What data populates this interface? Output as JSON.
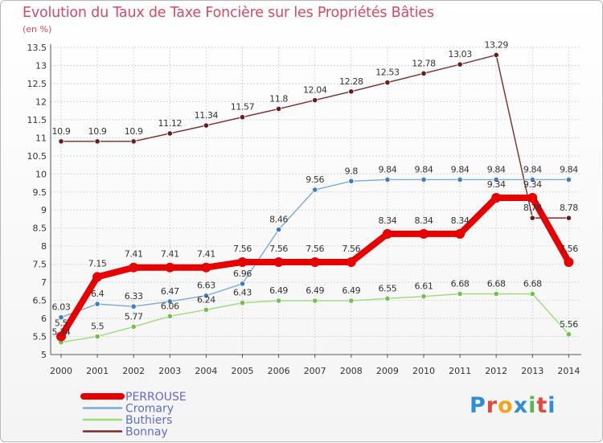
{
  "header": {
    "title": "Evolution du Taux de Taxe Foncière sur les Propriétés Bâties",
    "unit": "(en %)"
  },
  "logo": {
    "text": "Proxiti",
    "colors": [
      "#2e8fd6",
      "#e8453c",
      "#f2a51c",
      "#2e8fd6",
      "#5bb64d",
      "#e8453c",
      "#2e8fd6"
    ]
  },
  "chart_data": {
    "type": "line",
    "title": "Evolution du Taux de Taxe Foncière sur les Propriétés Bâties",
    "ylabel": "(en %)",
    "xlabel": "",
    "ylim": [
      5,
      13.5
    ],
    "yticks": [
      "5",
      "5.5",
      "6",
      "6.5",
      "7",
      "7.5",
      "8",
      "8.5",
      "9",
      "9.5",
      "10",
      "10.5",
      "11",
      "11.5",
      "12",
      "12.5",
      "13",
      "13.5"
    ],
    "categories": [
      "2000",
      "2001",
      "2002",
      "2003",
      "2004",
      "2005",
      "2006",
      "2007",
      "2008",
      "2009",
      "2010",
      "2011",
      "2012",
      "2013",
      "2014"
    ],
    "series": [
      {
        "name": "Bonnay",
        "color": "#7a2a2a",
        "marker": "#6a1a1a",
        "values": [
          10.9,
          10.9,
          10.9,
          11.12,
          11.34,
          11.57,
          11.8,
          12.04,
          12.28,
          12.53,
          12.78,
          13.03,
          13.29,
          8.78,
          8.78
        ],
        "labels": [
          "10.9",
          "10.9",
          "10.9",
          "11.12",
          "11.34",
          "11.57",
          "11.8",
          "12.04",
          "12.28",
          "12.53",
          "12.78",
          "13.03",
          "13.29",
          "8.78",
          "8.78"
        ]
      },
      {
        "name": "Cromary",
        "color": "#7aaad8",
        "marker": "#3a7ec4",
        "values": [
          6.03,
          6.4,
          6.33,
          6.47,
          6.63,
          6.96,
          8.46,
          9.56,
          9.8,
          9.84,
          9.84,
          9.84,
          9.84,
          9.84,
          9.84
        ],
        "labels": [
          "6.03",
          "6.4",
          "6.33",
          "6.47",
          "6.63",
          "6.96",
          "8.46",
          "9.56",
          "9.8",
          "9.84",
          "9.84",
          "9.84",
          "9.84",
          "9.84",
          "9.84"
        ]
      },
      {
        "name": "Buthiers",
        "color": "#9fd97a",
        "marker": "#6fc24a",
        "values": [
          5.34,
          5.5,
          5.77,
          6.06,
          6.24,
          6.43,
          6.49,
          6.49,
          6.49,
          6.55,
          6.61,
          6.68,
          6.68,
          6.68,
          5.56
        ],
        "labels": [
          "5.34",
          "5.5",
          "5.77",
          "6.06",
          "6.24",
          "6.43",
          "6.49",
          "6.49",
          "6.49",
          "6.55",
          "6.61",
          "6.68",
          "6.68",
          "6.68",
          "5.56"
        ]
      },
      {
        "name": "PERROUSE",
        "color": "#e80000",
        "marker": "#e80000",
        "values": [
          5.5,
          7.15,
          7.41,
          7.41,
          7.41,
          7.56,
          7.56,
          7.56,
          7.56,
          8.34,
          8.34,
          8.34,
          9.34,
          9.34,
          7.56
        ],
        "labels": [
          "5.5",
          "7.15",
          "7.41",
          "7.41",
          "7.41",
          "7.56",
          "7.56",
          "7.56",
          "7.56",
          "8.34",
          "8.34",
          "8.34",
          "9.34",
          "9.34",
          "7.56"
        ]
      }
    ],
    "legend": {
      "position": "bottom-left",
      "items": [
        {
          "name": "PERROUSE",
          "color": "#e80000",
          "textColor": "#6666cc"
        },
        {
          "name": "Cromary",
          "color": "#7aaad8",
          "textColor": "#5b6fc7"
        },
        {
          "name": "Buthiers",
          "color": "#9fd97a",
          "textColor": "#5b6fc7"
        },
        {
          "name": "Bonnay",
          "color": "#7a2a2a",
          "textColor": "#5b6fc7"
        }
      ]
    }
  }
}
